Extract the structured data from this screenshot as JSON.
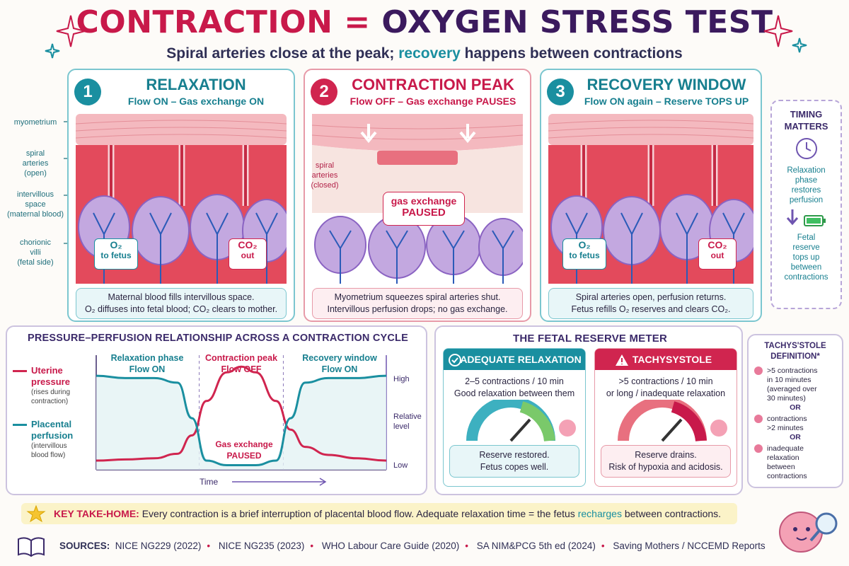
{
  "title": {
    "part1": "CONTRACTION",
    "eq": " = ",
    "part2": "OXYGEN STRESS TEST"
  },
  "subtitle": {
    "pre": "Spiral arteries close at the peak; ",
    "hl": "recovery",
    "post": " happens between contractions"
  },
  "panels": [
    {
      "num": "1",
      "heading": "RELAXATION",
      "sub": "Flow ON – Gas exchange ON",
      "caption_l1": "Maternal blood fills intervillous space.",
      "caption_l2": "O₂ diffuses into fetal blood; CO₂ clears to mother.",
      "o2": "O₂",
      "o2_sub": "to fetus",
      "co2": "CO₂",
      "co2_sub": "out"
    },
    {
      "num": "2",
      "heading": "CONTRACTION PEAK",
      "sub": "Flow OFF – Gas exchange PAUSES",
      "caption_l1": "Myometrium squeezes spiral arteries shut.",
      "caption_l2": "Intervillous perfusion drops; no gas exchange.",
      "paused_l1": "gas exchange",
      "paused_l2": "PAUSED",
      "label_l1": "spiral",
      "label_l2": "arteries",
      "label_l3": "(closed)"
    },
    {
      "num": "3",
      "heading": "RECOVERY WINDOW",
      "sub": "Flow ON again – Reserve TOPS UP",
      "caption_l1": "Spiral arteries open, perfusion returns.",
      "caption_l2": "Fetus refills O₂ reserves and clears CO₂.",
      "o2": "O₂",
      "o2_sub": "to fetus",
      "co2": "CO₂",
      "co2_sub": "out"
    }
  ],
  "side_labels": [
    {
      "l1": "myometrium",
      "l2": "",
      "l3": ""
    },
    {
      "l1": "spiral",
      "l2": "arteries",
      "l3": "(open)"
    },
    {
      "l1": "intervillous",
      "l2": "space",
      "l3": "(maternal blood)"
    },
    {
      "l1": "chorionic",
      "l2": "villi",
      "l3": "(fetal side)"
    }
  ],
  "timing": {
    "title_l1": "TIMING",
    "title_l2": "MATTERS",
    "t1": "Relaxation",
    "t2": "phase",
    "t3": "restores",
    "t4": "perfusion",
    "f1": "Fetal",
    "f2": "reserve",
    "f3": "tops up",
    "f4": "between",
    "f5": "contractions"
  },
  "pressure": {
    "title": "PRESSURE–PERFUSION RELATIONSHIP ACROSS A CONTRACTION CYCLE",
    "legend": [
      {
        "name": "Uterine",
        "name2": "pressure",
        "note1": "(rises during",
        "note2": "contraction)",
        "color": "#d0254f"
      },
      {
        "name": "Placental",
        "name2": "perfusion",
        "note1": "(intervillous",
        "note2": "blood flow)",
        "color": "#1a8fa0"
      }
    ],
    "phases": [
      {
        "l1": "Relaxation phase",
        "l2": "Flow ON",
        "color": "#177f8f"
      },
      {
        "l1": "Contraction peak",
        "l2": "Flow OFF",
        "color": "#c8194a"
      },
      {
        "l1": "Recovery window",
        "l2": "Flow ON",
        "color": "#177f8f"
      }
    ],
    "paused_l1": "Gas exchange",
    "paused_l2": "PAUSED",
    "y_high": "High",
    "y_mid1": "Relative",
    "y_mid2": "level",
    "y_low": "Low",
    "x_label": "Time"
  },
  "chart_data": {
    "type": "line",
    "title": "PRESSURE–PERFUSION RELATIONSHIP ACROSS A CONTRACTION CYCLE",
    "xlabel": "Time",
    "ylabel": "Relative level",
    "y_ticks": [
      "Low",
      "High"
    ],
    "x": [
      0,
      0.1,
      0.2,
      0.28,
      0.33,
      0.38,
      0.45,
      0.5,
      0.55,
      0.62,
      0.67,
      0.72,
      0.8,
      0.9,
      1.0
    ],
    "series": [
      {
        "name": "Uterine pressure",
        "color": "#d0254f",
        "values": [
          0.08,
          0.09,
          0.1,
          0.14,
          0.3,
          0.6,
          0.85,
          0.9,
          0.85,
          0.6,
          0.35,
          0.2,
          0.13,
          0.1,
          0.08
        ]
      },
      {
        "name": "Placental perfusion",
        "color": "#1a8fa0",
        "values": [
          0.82,
          0.8,
          0.8,
          0.76,
          0.45,
          0.08,
          0.04,
          0.04,
          0.04,
          0.08,
          0.45,
          0.76,
          0.8,
          0.8,
          0.82
        ]
      }
    ]
  },
  "meter": {
    "title": "THE FETAL RESERVE METER",
    "good": {
      "head": "ADEQUATE RELAXATION",
      "d1": "2–5 contractions / 10 min",
      "d2": "Good relaxation between them",
      "f1": "Reserve restored.",
      "f2": "Fetus copes well.",
      "color": "#1a8fa0"
    },
    "bad": {
      "head": "TACHYSYSTOLE",
      "d1": ">5 contractions / 10 min",
      "d2": "or long / inadequate relaxation",
      "f1": "Reserve drains.",
      "f2": "Risk of hypoxia and acidosis.",
      "color": "#d0254f"
    }
  },
  "definition": {
    "title_l1": "TACHYS'STOLE",
    "title_l2": "DEFINITION*",
    "items": [
      {
        "l1": ">5 contractions",
        "l2": "in 10 minutes",
        "l3": "(averaged over",
        "l4": "30 minutes)"
      },
      {
        "l1": "contractions",
        "l2": ">2 minutes",
        "l3": "",
        "l4": ""
      },
      {
        "l1": "inadequate",
        "l2": "relaxation",
        "l3": "between",
        "l4": "contractions"
      }
    ],
    "or": "OR"
  },
  "takehome": {
    "label": "KEY TAKE-HOME:",
    "text_pre": " Every contraction is a brief interruption of placental blood flow. Adequate relaxation time = the fetus ",
    "hl": "recharges",
    "text_post": " between contractions."
  },
  "sources": {
    "label": "SOURCES:",
    "items": [
      "NICE NG229 (2022)",
      "NICE NG235 (2023)",
      "WHO Labour Care Guide (2020)",
      "SA NIM&PCG 5th ed (2024)",
      "Saving Mothers / NCCEMD Reports"
    ]
  },
  "colors": {
    "teal": "#1a8fa0",
    "red": "#d0254f",
    "purple": "#3b1a5e"
  }
}
